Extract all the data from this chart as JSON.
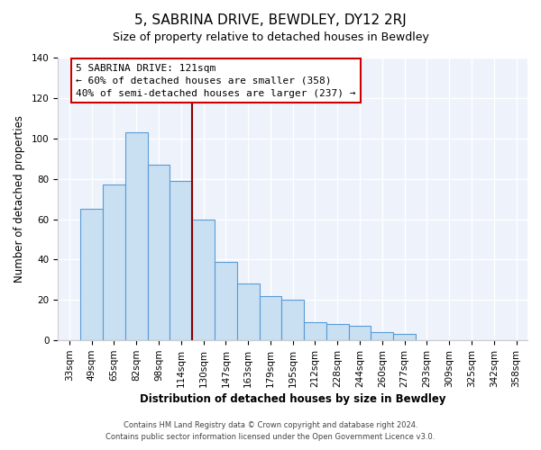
{
  "title": "5, SABRINA DRIVE, BEWDLEY, DY12 2RJ",
  "subtitle": "Size of property relative to detached houses in Bewdley",
  "xlabel": "Distribution of detached houses by size in Bewdley",
  "ylabel": "Number of detached properties",
  "bar_labels": [
    "33sqm",
    "49sqm",
    "65sqm",
    "82sqm",
    "98sqm",
    "114sqm",
    "130sqm",
    "147sqm",
    "163sqm",
    "179sqm",
    "195sqm",
    "212sqm",
    "228sqm",
    "244sqm",
    "260sqm",
    "277sqm",
    "293sqm",
    "309sqm",
    "325sqm",
    "342sqm",
    "358sqm"
  ],
  "bar_values": [
    0,
    65,
    77,
    103,
    87,
    79,
    60,
    39,
    28,
    22,
    20,
    9,
    8,
    7,
    4,
    3,
    0,
    0,
    0,
    0,
    0
  ],
  "bar_color": "#c9dff2",
  "bar_edge_color": "#5b9bd5",
  "vline_index": 5.5,
  "vline_color": "#8b0000",
  "annotation_box_edge": "#cc0000",
  "marker_label_line1": "5 SABRINA DRIVE: 121sqm",
  "marker_label_line2": "← 60% of detached houses are smaller (358)",
  "marker_label_line3": "40% of semi-detached houses are larger (237) →",
  "ylim": [
    0,
    140
  ],
  "yticks": [
    0,
    20,
    40,
    60,
    80,
    100,
    120,
    140
  ],
  "footnote1": "Contains HM Land Registry data © Crown copyright and database right 2024.",
  "footnote2": "Contains public sector information licensed under the Open Government Licence v3.0.",
  "bg_color": "#ffffff",
  "plot_bg_color": "#eef3fb",
  "grid_color": "#ffffff",
  "title_fontsize": 11,
  "subtitle_fontsize": 9,
  "axis_label_fontsize": 8.5,
  "tick_fontsize": 7.5,
  "annotation_fontsize": 8,
  "footnote_fontsize": 6
}
